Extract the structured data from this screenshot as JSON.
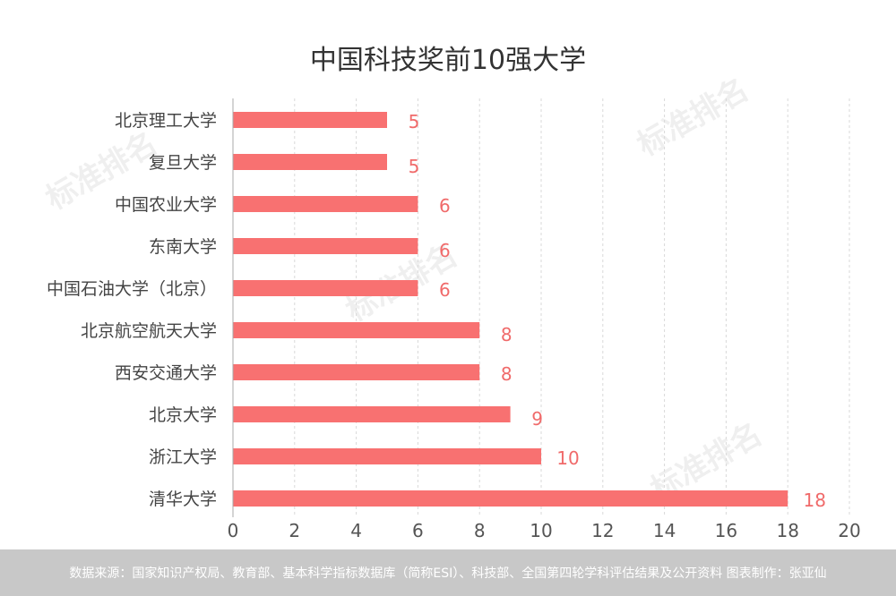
{
  "title": "中国科技奖前10强大学",
  "footer_note": "数据来源：国家知识产权局、教育部、基本科学指标数据库（简称ESI）、科技部、全国第四轮学科评估结果及公开资料  图表制作：张亚仙",
  "watermark": "标准排名",
  "colors": {
    "bar": "#f87171",
    "label": "#f06a6a",
    "grid": "#d9d9d9",
    "axis": "#aaaaaa"
  },
  "chart_data": {
    "type": "bar",
    "orientation": "horizontal",
    "title": "中国科技奖前10强大学",
    "categories": [
      "北京理工大学",
      "复旦大学",
      "中国农业大学",
      "东南大学",
      "中国石油大学（北京）",
      "北京航空航天大学",
      "西安交通大学",
      "北京大学",
      "浙江大学",
      "清华大学"
    ],
    "values": [
      5,
      5,
      6,
      6,
      6,
      8,
      8,
      9,
      10,
      18
    ],
    "xlim": [
      0,
      20
    ],
    "xticks": [
      0,
      2,
      4,
      6,
      8,
      10,
      12,
      14,
      16,
      18,
      20
    ],
    "grid": "vertical dashed",
    "legend": "none"
  }
}
